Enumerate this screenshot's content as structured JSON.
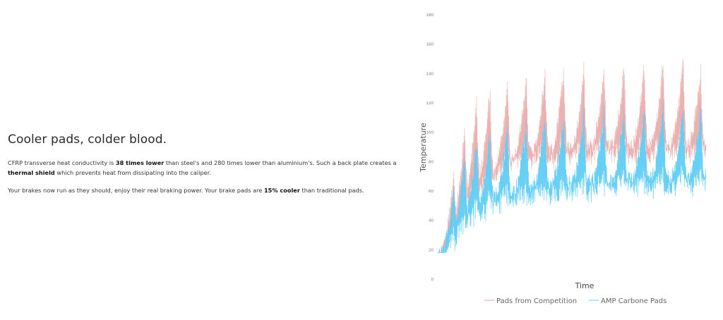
{
  "heading": "Cooler pads, colder blood.",
  "paragraph1": {
    "t1": "CFRP transverse heat conductivity is ",
    "b1": "38 times lower",
    "t2": " than steel's and 280 times lower than aluminium's. Such a back plate creates a ",
    "b2": "thermal shield",
    "t3": " which prevents heat from dissipating into the caliper."
  },
  "paragraph2": {
    "t1": "Your brakes now run as they should, enjoy their real braking power. Your brake pads are ",
    "b1": "15% cooler",
    "t2": " than traditional pads."
  },
  "chart_data": {
    "type": "line",
    "xlabel": "Time",
    "ylabel": "Temperature",
    "ylim": [
      0,
      180
    ],
    "yticks": [
      0,
      20,
      40,
      60,
      80,
      100,
      120,
      140,
      160,
      180
    ],
    "grid": false,
    "legend_position": "bottom-center",
    "cycle_peaks_x": [
      0.06,
      0.1,
      0.145,
      0.195,
      0.26,
      0.33,
      0.4,
      0.47,
      0.545,
      0.62,
      0.695,
      0.77,
      0.84,
      0.915,
      0.98
    ],
    "series": [
      {
        "name": "Pads from Competition",
        "color": "#e8a3a3",
        "baseline": [
          [
            0,
            20
          ],
          [
            0.05,
            40
          ],
          [
            0.1,
            60
          ],
          [
            0.15,
            72
          ],
          [
            0.22,
            82
          ],
          [
            0.3,
            90
          ],
          [
            0.45,
            94
          ],
          [
            0.6,
            96
          ],
          [
            0.8,
            97
          ],
          [
            1,
            98
          ]
        ],
        "peaks": [
          [
            0,
            22
          ],
          [
            0.05,
            70
          ],
          [
            0.1,
            110
          ],
          [
            0.15,
            130
          ],
          [
            0.25,
            140
          ],
          [
            0.35,
            145
          ],
          [
            0.5,
            150
          ],
          [
            0.7,
            152
          ],
          [
            0.9,
            155
          ],
          [
            1,
            145
          ]
        ]
      },
      {
        "name": "AMP Carbone Pads",
        "color": "#5fcdf3",
        "baseline": [
          [
            0,
            20
          ],
          [
            0.05,
            34
          ],
          [
            0.1,
            48
          ],
          [
            0.15,
            56
          ],
          [
            0.22,
            62
          ],
          [
            0.3,
            66
          ],
          [
            0.45,
            70
          ],
          [
            0.6,
            72
          ],
          [
            0.8,
            74
          ],
          [
            1,
            76
          ]
        ],
        "peaks": [
          [
            0,
            22
          ],
          [
            0.05,
            62
          ],
          [
            0.1,
            88
          ],
          [
            0.15,
            100
          ],
          [
            0.25,
            108
          ],
          [
            0.35,
            112
          ],
          [
            0.5,
            118
          ],
          [
            0.7,
            120
          ],
          [
            0.9,
            122
          ],
          [
            1,
            118
          ]
        ]
      }
    ]
  }
}
